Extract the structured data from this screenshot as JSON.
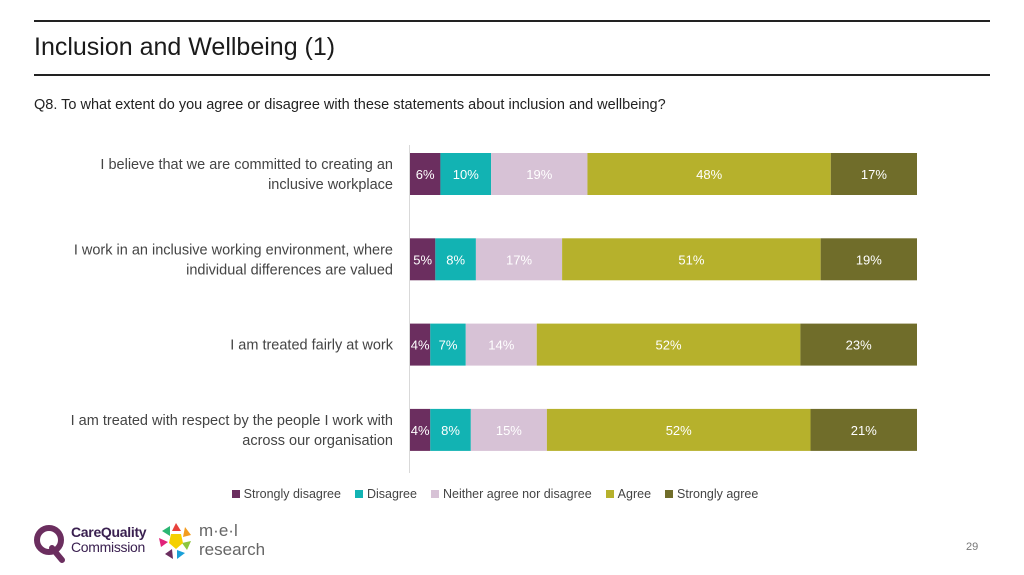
{
  "header": {
    "title": "Inclusion and Wellbeing (1)",
    "question": "Q8. To what extent do you agree or disagree with these statements about inclusion and wellbeing?"
  },
  "chart_data": {
    "type": "bar",
    "orientation": "horizontal",
    "stacked": true,
    "title": "",
    "xlabel": "",
    "ylabel": "",
    "xlim": [
      0,
      100
    ],
    "categories": [
      [
        "I believe that we are committed to creating an",
        "inclusive workplace"
      ],
      [
        "I work in an inclusive working environment, where",
        "individual differences are valued"
      ],
      [
        "I am treated fairly at work"
      ],
      [
        "I am treated with respect by the people I work with",
        "across our organisation"
      ]
    ],
    "series": [
      {
        "name": "Strongly disagree",
        "color": "#6b2e5f",
        "label_color": "#ffffff",
        "values": [
          6,
          5,
          4,
          4
        ]
      },
      {
        "name": "Disagree",
        "color": "#12b3b3",
        "label_color": "#ffffff",
        "values": [
          10,
          8,
          7,
          8
        ]
      },
      {
        "name": "Neither agree nor disagree",
        "color": "#d7c2d6",
        "label_color": "#ffffff",
        "values": [
          19,
          17,
          14,
          15
        ]
      },
      {
        "name": "Agree",
        "color": "#b6b12c",
        "label_color": "#ffffff",
        "values": [
          48,
          51,
          52,
          52
        ]
      },
      {
        "name": "Strongly agree",
        "color": "#706d2a",
        "label_color": "#ffffff",
        "values": [
          17,
          19,
          23,
          21
        ]
      }
    ],
    "value_suffix": "%",
    "legend_position": "bottom"
  },
  "logos": {
    "cqc_line1": "CareQuality",
    "cqc_line2": "Commission",
    "mel_line1": "m·e·l",
    "mel_line2": "research"
  },
  "footer": {
    "page_number": "29"
  }
}
